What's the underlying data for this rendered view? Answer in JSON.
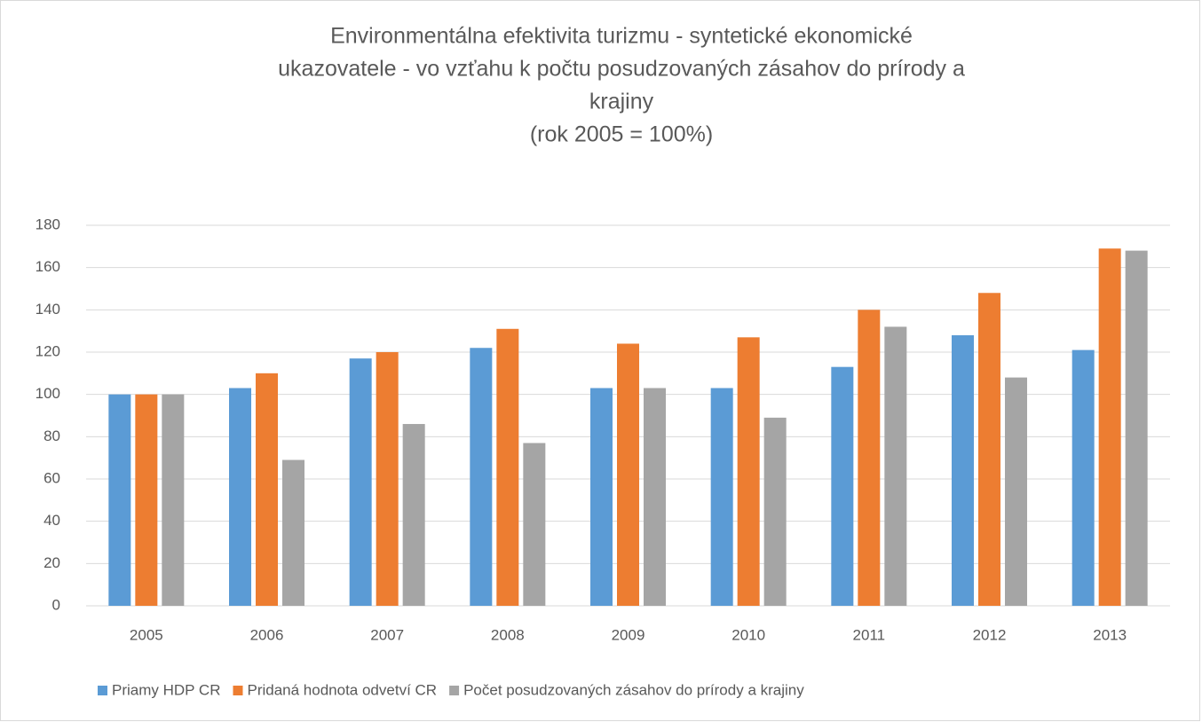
{
  "chart_data": {
    "type": "bar",
    "title": [
      "Environmentálna efektivita turizmu - syntetické ekonomické",
      "ukazovatele - vo vzťahu k počtu posudzovaných zásahov do prírody a",
      "krajiny",
      "(rok 2005 = 100%)"
    ],
    "categories": [
      "2005",
      "2006",
      "2007",
      "2008",
      "2009",
      "2010",
      "2011",
      "2012",
      "2013"
    ],
    "series": [
      {
        "name": "Priamy HDP CR",
        "color": "#5b9bd5",
        "values": [
          100,
          103,
          117,
          122,
          103,
          103,
          113,
          128,
          121
        ]
      },
      {
        "name": "Pridaná hodnota odvetví CR",
        "color": "#ed7d31",
        "values": [
          100,
          110,
          120,
          131,
          124,
          127,
          140,
          148,
          169
        ]
      },
      {
        "name": "Počet posudzovaných zásahov do prírody a krajiny",
        "color": "#a5a5a5",
        "values": [
          100,
          69,
          86,
          77,
          103,
          89,
          132,
          108,
          168
        ]
      }
    ],
    "ylim": [
      0,
      180
    ],
    "yticks": [
      0,
      20,
      40,
      60,
      80,
      100,
      120,
      140,
      160,
      180
    ],
    "grid": true,
    "legend": "bottom"
  }
}
